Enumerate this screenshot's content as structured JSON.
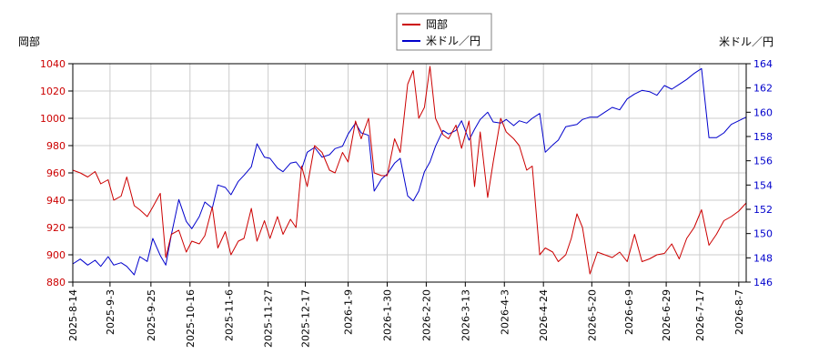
{
  "chart_data": {
    "type": "line",
    "left_axis_label": "岡部",
    "right_axis_label": "米ドル／円",
    "left_ylim": [
      880,
      1040
    ],
    "left_ticks": [
      880,
      900,
      920,
      940,
      960,
      980,
      1000,
      1020,
      1040
    ],
    "right_ylim": [
      146,
      164
    ],
    "right_ticks": [
      146,
      148,
      150,
      152,
      154,
      156,
      158,
      160,
      162,
      164
    ],
    "x_range": [
      "2025-08-14",
      "2026-08-11"
    ],
    "x_ticks": [
      "2025-8-14",
      "2025-9-3",
      "2025-9-25",
      "2025-10-16",
      "2025-11-6",
      "2025-11-27",
      "2025-12-17",
      "2026-1-9",
      "2026-1-30",
      "2026-2-20",
      "2026-3-13",
      "2026-4-3",
      "2026-4-24",
      "2026-5-20",
      "2026-6-9",
      "2026-6-29",
      "2026-7-17",
      "2026-8-7"
    ],
    "grid": true,
    "legend_position": "top-center",
    "series": [
      {
        "name": "岡部",
        "axis": "left",
        "color": "#cc0000",
        "points": [
          [
            "2025-08-14",
            962
          ],
          [
            "2025-08-18",
            960
          ],
          [
            "2025-08-22",
            957
          ],
          [
            "2025-08-26",
            961
          ],
          [
            "2025-08-29",
            952
          ],
          [
            "2025-09-02",
            955
          ],
          [
            "2025-09-05",
            940
          ],
          [
            "2025-09-09",
            943
          ],
          [
            "2025-09-12",
            957
          ],
          [
            "2025-09-16",
            936
          ],
          [
            "2025-09-19",
            933
          ],
          [
            "2025-09-23",
            928
          ],
          [
            "2025-09-26",
            935
          ],
          [
            "2025-09-30",
            945
          ],
          [
            "2025-10-03",
            898
          ],
          [
            "2025-10-06",
            915
          ],
          [
            "2025-10-10",
            918
          ],
          [
            "2025-10-14",
            902
          ],
          [
            "2025-10-17",
            910
          ],
          [
            "2025-10-21",
            908
          ],
          [
            "2025-10-24",
            914
          ],
          [
            "2025-10-28",
            935
          ],
          [
            "2025-10-31",
            905
          ],
          [
            "2025-11-04",
            917
          ],
          [
            "2025-11-07",
            900
          ],
          [
            "2025-11-11",
            910
          ],
          [
            "2025-11-14",
            912
          ],
          [
            "2025-11-18",
            934
          ],
          [
            "2025-11-21",
            910
          ],
          [
            "2025-11-25",
            925
          ],
          [
            "2025-11-28",
            912
          ],
          [
            "2025-12-02",
            928
          ],
          [
            "2025-12-05",
            915
          ],
          [
            "2025-12-09",
            926
          ],
          [
            "2025-12-12",
            920
          ],
          [
            "2025-12-15",
            965
          ],
          [
            "2025-12-18",
            950
          ],
          [
            "2025-12-22",
            980
          ],
          [
            "2025-12-26",
            975
          ],
          [
            "2025-12-30",
            962
          ],
          [
            "2026-01-02",
            960
          ],
          [
            "2026-01-06",
            975
          ],
          [
            "2026-01-09",
            968
          ],
          [
            "2026-01-13",
            998
          ],
          [
            "2026-01-16",
            985
          ],
          [
            "2026-01-20",
            1000
          ],
          [
            "2026-01-23",
            960
          ],
          [
            "2026-01-27",
            958
          ],
          [
            "2026-01-30",
            958
          ],
          [
            "2026-02-03",
            985
          ],
          [
            "2026-02-06",
            975
          ],
          [
            "2026-02-10",
            1025
          ],
          [
            "2026-02-13",
            1035
          ],
          [
            "2026-02-16",
            1000
          ],
          [
            "2026-02-19",
            1008
          ],
          [
            "2026-02-22",
            1038
          ],
          [
            "2026-02-25",
            1000
          ],
          [
            "2026-03-01",
            988
          ],
          [
            "2026-03-04",
            985
          ],
          [
            "2026-03-08",
            995
          ],
          [
            "2026-03-11",
            978
          ],
          [
            "2026-03-15",
            998
          ],
          [
            "2026-03-18",
            950
          ],
          [
            "2026-03-21",
            990
          ],
          [
            "2026-03-25",
            942
          ],
          [
            "2026-03-28",
            968
          ],
          [
            "2026-04-01",
            1000
          ],
          [
            "2026-04-04",
            990
          ],
          [
            "2026-04-08",
            985
          ],
          [
            "2026-04-11",
            980
          ],
          [
            "2026-04-15",
            962
          ],
          [
            "2026-04-18",
            965
          ],
          [
            "2026-04-22",
            900
          ],
          [
            "2026-04-25",
            905
          ],
          [
            "2026-04-29",
            902
          ],
          [
            "2026-05-02",
            895
          ],
          [
            "2026-05-06",
            900
          ],
          [
            "2026-05-09",
            912
          ],
          [
            "2026-05-12",
            930
          ],
          [
            "2026-05-15",
            920
          ],
          [
            "2026-05-19",
            886
          ],
          [
            "2026-05-23",
            902
          ],
          [
            "2026-05-27",
            900
          ],
          [
            "2026-05-31",
            898
          ],
          [
            "2026-06-04",
            902
          ],
          [
            "2026-06-08",
            895
          ],
          [
            "2026-06-12",
            915
          ],
          [
            "2026-06-16",
            895
          ],
          [
            "2026-06-20",
            897
          ],
          [
            "2026-06-24",
            900
          ],
          [
            "2026-06-28",
            901
          ],
          [
            "2026-07-02",
            908
          ],
          [
            "2026-07-06",
            897
          ],
          [
            "2026-07-10",
            912
          ],
          [
            "2026-07-14",
            920
          ],
          [
            "2026-07-18",
            933
          ],
          [
            "2026-07-22",
            907
          ],
          [
            "2026-07-26",
            915
          ],
          [
            "2026-07-30",
            925
          ],
          [
            "2026-08-03",
            928
          ],
          [
            "2026-08-07",
            932
          ],
          [
            "2026-08-11",
            938
          ]
        ]
      },
      {
        "name": "米ドル／円",
        "axis": "right",
        "color": "#0000cc",
        "points": [
          [
            "2025-08-14",
            147.5
          ],
          [
            "2025-08-18",
            147.9
          ],
          [
            "2025-08-22",
            147.4
          ],
          [
            "2025-08-26",
            147.8
          ],
          [
            "2025-08-29",
            147.3
          ],
          [
            "2025-09-02",
            148.1
          ],
          [
            "2025-09-05",
            147.4
          ],
          [
            "2025-09-09",
            147.6
          ],
          [
            "2025-09-12",
            147.3
          ],
          [
            "2025-09-16",
            146.6
          ],
          [
            "2025-09-19",
            148.1
          ],
          [
            "2025-09-23",
            147.7
          ],
          [
            "2025-09-26",
            149.6
          ],
          [
            "2025-09-30",
            148.2
          ],
          [
            "2025-10-03",
            147.4
          ],
          [
            "2025-10-06",
            149.9
          ],
          [
            "2025-10-10",
            152.8
          ],
          [
            "2025-10-14",
            151.0
          ],
          [
            "2025-10-17",
            150.4
          ],
          [
            "2025-10-21",
            151.4
          ],
          [
            "2025-10-24",
            152.6
          ],
          [
            "2025-10-28",
            152.1
          ],
          [
            "2025-10-31",
            154.0
          ],
          [
            "2025-11-04",
            153.8
          ],
          [
            "2025-11-07",
            153.2
          ],
          [
            "2025-11-11",
            154.3
          ],
          [
            "2025-11-14",
            154.8
          ],
          [
            "2025-11-18",
            155.5
          ],
          [
            "2025-11-21",
            157.4
          ],
          [
            "2025-11-25",
            156.3
          ],
          [
            "2025-11-28",
            156.2
          ],
          [
            "2025-12-02",
            155.4
          ],
          [
            "2025-12-05",
            155.1
          ],
          [
            "2025-12-09",
            155.8
          ],
          [
            "2025-12-12",
            155.9
          ],
          [
            "2025-12-15",
            155.3
          ],
          [
            "2025-12-18",
            156.7
          ],
          [
            "2025-12-22",
            157.1
          ],
          [
            "2025-12-26",
            156.3
          ],
          [
            "2025-12-30",
            156.5
          ],
          [
            "2026-01-02",
            157.0
          ],
          [
            "2026-01-06",
            157.2
          ],
          [
            "2026-01-09",
            158.2
          ],
          [
            "2026-01-13",
            159.1
          ],
          [
            "2026-01-16",
            158.3
          ],
          [
            "2026-01-20",
            158.1
          ],
          [
            "2026-01-23",
            153.5
          ],
          [
            "2026-01-27",
            154.5
          ],
          [
            "2026-01-30",
            154.9
          ],
          [
            "2026-02-03",
            155.8
          ],
          [
            "2026-02-06",
            156.2
          ],
          [
            "2026-02-10",
            153.1
          ],
          [
            "2026-02-13",
            152.7
          ],
          [
            "2026-02-16",
            153.5
          ],
          [
            "2026-02-19",
            155.1
          ],
          [
            "2026-02-22",
            155.9
          ],
          [
            "2026-02-25",
            157.2
          ],
          [
            "2026-03-01",
            158.5
          ],
          [
            "2026-03-04",
            158.2
          ],
          [
            "2026-03-08",
            158.5
          ],
          [
            "2026-03-11",
            159.3
          ],
          [
            "2026-03-15",
            157.7
          ],
          [
            "2026-03-18",
            158.6
          ],
          [
            "2026-03-21",
            159.4
          ],
          [
            "2026-03-25",
            160.0
          ],
          [
            "2026-03-28",
            159.2
          ],
          [
            "2026-04-01",
            159.1
          ],
          [
            "2026-04-04",
            159.4
          ],
          [
            "2026-04-08",
            158.9
          ],
          [
            "2026-04-11",
            159.3
          ],
          [
            "2026-04-15",
            159.1
          ],
          [
            "2026-04-18",
            159.5
          ],
          [
            "2026-04-22",
            159.9
          ],
          [
            "2026-04-25",
            156.7
          ],
          [
            "2026-04-29",
            157.3
          ],
          [
            "2026-05-02",
            157.7
          ],
          [
            "2026-05-06",
            158.8
          ],
          [
            "2026-05-09",
            158.9
          ],
          [
            "2026-05-12",
            159.0
          ],
          [
            "2026-05-15",
            159.4
          ],
          [
            "2026-05-19",
            159.6
          ],
          [
            "2026-05-23",
            159.6
          ],
          [
            "2026-05-27",
            160.0
          ],
          [
            "2026-05-31",
            160.4
          ],
          [
            "2026-06-04",
            160.2
          ],
          [
            "2026-06-08",
            161.1
          ],
          [
            "2026-06-12",
            161.5
          ],
          [
            "2026-06-16",
            161.8
          ],
          [
            "2026-06-20",
            161.7
          ],
          [
            "2026-06-24",
            161.4
          ],
          [
            "2026-06-28",
            162.2
          ],
          [
            "2026-07-02",
            161.9
          ],
          [
            "2026-07-06",
            162.3
          ],
          [
            "2026-07-10",
            162.7
          ],
          [
            "2026-07-14",
            163.2
          ],
          [
            "2026-07-18",
            163.6
          ],
          [
            "2026-07-22",
            157.9
          ],
          [
            "2026-07-26",
            157.9
          ],
          [
            "2026-07-30",
            158.3
          ],
          [
            "2026-08-03",
            159.0
          ],
          [
            "2026-08-07",
            159.3
          ],
          [
            "2026-08-11",
            159.6
          ]
        ]
      }
    ]
  }
}
